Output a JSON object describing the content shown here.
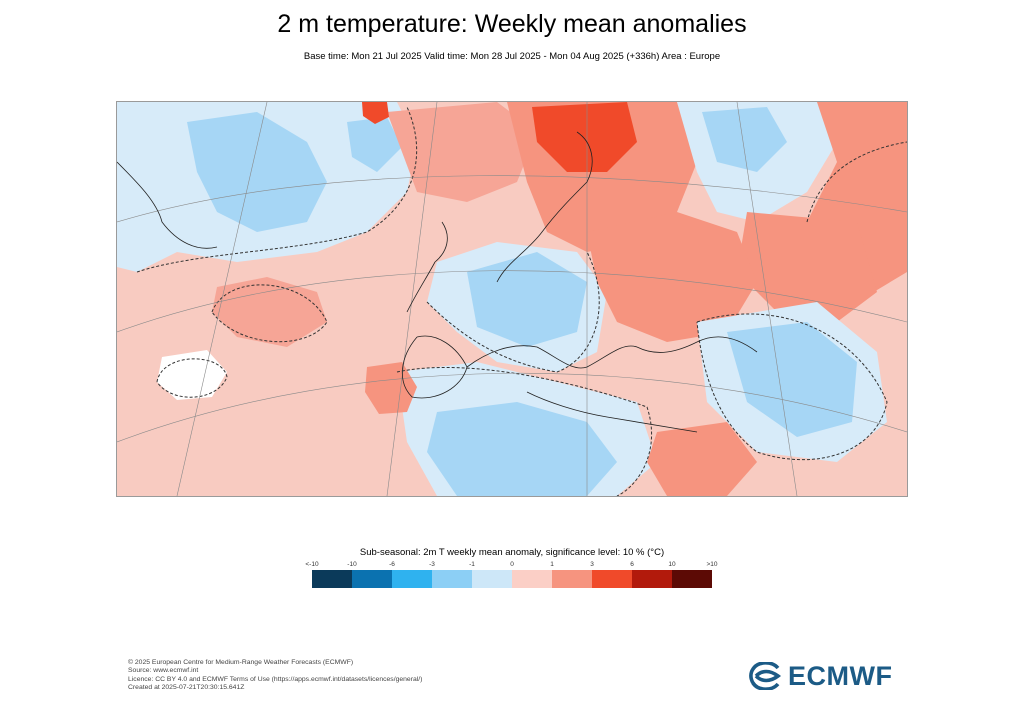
{
  "header": {
    "title": "2 m temperature: Weekly mean anomalies",
    "subtitle": "Base time: Mon 21 Jul 2025 Valid time: Mon 28 Jul 2025 - Mon 04 Aug 2025 (+336h) Area : Europe"
  },
  "map": {
    "region": "Europe",
    "variable": "2 m temperature weekly mean anomaly"
  },
  "legend": {
    "title": "Sub-seasonal: 2m T weekly mean anomaly, significance level: 10 % (°C)",
    "ticks": [
      "<-10",
      "-10",
      "-6",
      "-3",
      "-1",
      "0",
      "1",
      "3",
      "6",
      "10",
      ">10"
    ],
    "colors": [
      "#0b3a5a",
      "#0b72b0",
      "#2fb2ef",
      "#8ccff5",
      "#cde7f8",
      "#fbcfc6",
      "#f6947f",
      "#f04a2a",
      "#b21a0c",
      "#5c0a05"
    ]
  },
  "credits": {
    "line1": "© 2025 European Centre for Medium-Range Weather Forecasts (ECMWF)",
    "line2": "Source: www.ecmwf.int",
    "line3": "Licence: CC BY 4.0 and ECMWF Terms of Use (https://apps.ecmwf.int/datasets/licences/general/)",
    "line4": "Created at 2025-07-21T20:30:15.641Z"
  },
  "logo": {
    "text": "ECMWF",
    "color": "#1c5b86"
  }
}
